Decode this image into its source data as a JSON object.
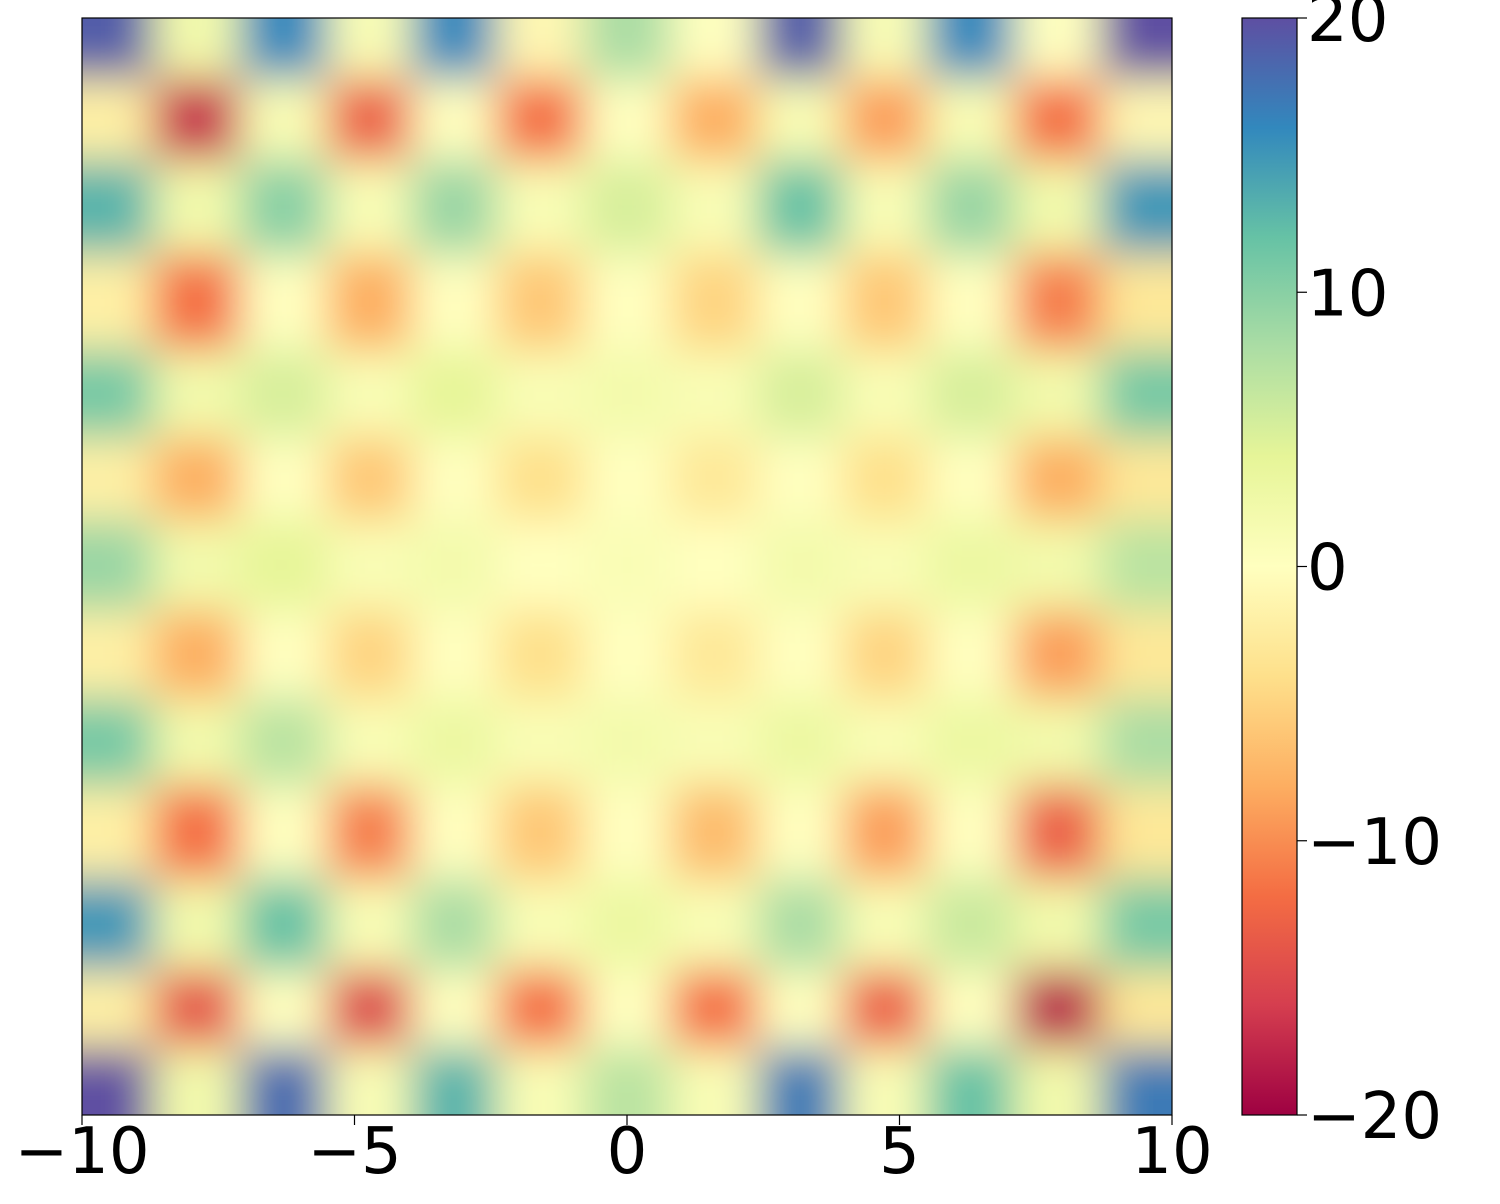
{
  "chart_data": {
    "type": "heatmap",
    "x": [
      -9.5,
      -7.9,
      -6.3,
      -4.7,
      -3.2,
      -1.6,
      0,
      1.6,
      3.2,
      4.7,
      6.3,
      7.9,
      9.5
    ],
    "y": [
      9.5,
      8.3,
      6.5,
      4.9,
      3.0,
      1.7,
      0,
      -1.6,
      -3.2,
      -4.8,
      -6.6,
      -8.1,
      -9.45
    ],
    "z": [
      [
        19,
        2,
        16,
        1,
        16,
        -1,
        8,
        0,
        19,
        1,
        16,
        0,
        20
      ],
      [
        -2,
        -17,
        1,
        -13,
        0,
        -12,
        0,
        -8,
        1,
        -9,
        1,
        -12,
        -1
      ],
      [
        13,
        2,
        10,
        1,
        9,
        1,
        5,
        1,
        12,
        1,
        9,
        2,
        15
      ],
      [
        -2,
        -12,
        0,
        -8,
        0,
        -6,
        0,
        -5,
        0,
        -6,
        0,
        -11,
        -3
      ],
      [
        11,
        2,
        5,
        1,
        4,
        1,
        2,
        1,
        5,
        1,
        5,
        2,
        11
      ],
      [
        -2,
        -8,
        0,
        -6,
        0,
        -4,
        0,
        -3,
        0,
        -4,
        0,
        -8,
        -3
      ],
      [
        9,
        2,
        4,
        1,
        2,
        0,
        1,
        0,
        2,
        1,
        3,
        2,
        7
      ],
      [
        -2,
        -8,
        0,
        -5,
        0,
        -4,
        0,
        -3,
        0,
        -5,
        0,
        -9,
        -3
      ],
      [
        11,
        2,
        7,
        1,
        3,
        1,
        2,
        1,
        3,
        1,
        3,
        2,
        8
      ],
      [
        -2,
        -12,
        0,
        -11,
        0,
        -6,
        0,
        -7,
        0,
        -9,
        0,
        -13,
        -3
      ],
      [
        15,
        2,
        12,
        1,
        8,
        1,
        3,
        1,
        8,
        1,
        6,
        2,
        11
      ],
      [
        -2,
        -14,
        0,
        -15,
        0,
        -12,
        0,
        -12,
        0,
        -13,
        0,
        -18,
        -3
      ],
      [
        20,
        2,
        18,
        1,
        13,
        1,
        7,
        1,
        17,
        1,
        12,
        2,
        17
      ]
    ],
    "xlim": [
      -10,
      10
    ],
    "ylim": [
      -10,
      10
    ],
    "xticks": [
      {
        "value": -10,
        "label": "−10"
      },
      {
        "value": -5,
        "label": "−5"
      },
      0,
      5,
      10
    ],
    "zlim": [
      -20,
      20
    ],
    "zticks": [
      {
        "value": -20,
        "label": "−20"
      },
      {
        "value": -10,
        "label": "−10"
      },
      0,
      10,
      20
    ],
    "colormap": [
      "#9e0142",
      "#d53e4f",
      "#f46d43",
      "#fdae61",
      "#fee08b",
      "#ffffbf",
      "#e6f598",
      "#abdda4",
      "#66c2a5",
      "#3288bd",
      "#5e4fa2"
    ]
  }
}
